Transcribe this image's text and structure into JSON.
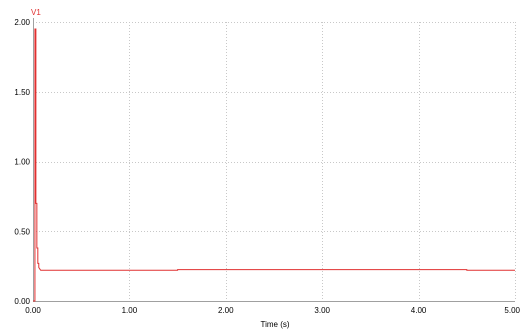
{
  "colors": {
    "series": "#e03030",
    "axis": "#a0a0a0",
    "grid": "#c8c8c8",
    "background": "#ffffff"
  },
  "chart_data": {
    "type": "line",
    "title": "",
    "xlabel": "Time (s)",
    "ylabel": "",
    "xlim": [
      0,
      5
    ],
    "ylim": [
      0,
      2
    ],
    "grid": true,
    "x_ticks": [
      0,
      1,
      2,
      3,
      4,
      5
    ],
    "x_tick_labels": [
      "0.00",
      "1.00",
      "2.00",
      "3.00",
      "4.00",
      "5.00"
    ],
    "y_ticks": [
      0,
      0.5,
      1,
      1.5,
      2
    ],
    "y_tick_labels": [
      "0.00",
      "0.50",
      "1.00",
      "1.50",
      "2.00"
    ],
    "series": [
      {
        "name": "V1",
        "color": "#e03030",
        "x": [
          0,
          0.02,
          0.02,
          0.03,
          0.03,
          0.04,
          0.04,
          0.05,
          0.05,
          0.06,
          0.06,
          0.07,
          0.08,
          0.1,
          0.15,
          0.5,
          1.5,
          1.5,
          4.5,
          4.5,
          5.0
        ],
        "y": [
          0,
          0,
          1.95,
          1.95,
          0.7,
          0.7,
          0.38,
          0.38,
          0.27,
          0.27,
          0.24,
          0.23,
          0.22,
          0.22,
          0.22,
          0.22,
          0.22,
          0.225,
          0.225,
          0.22,
          0.22
        ]
      }
    ]
  }
}
